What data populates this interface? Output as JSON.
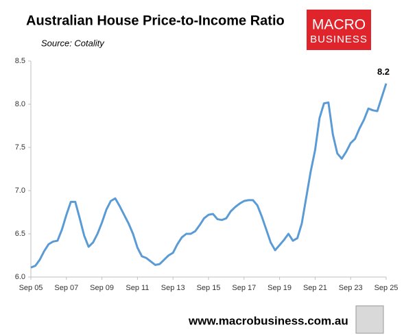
{
  "chart_data": {
    "type": "line",
    "title": "Australian House Price-to-Income Ratio",
    "subtitle": "Source: Cotality",
    "logo": [
      "MACRO",
      "BUSINESS"
    ],
    "footer": "www.macrobusiness.com.au",
    "categories": [
      "Sep 05",
      null,
      null,
      null,
      null,
      null,
      null,
      null,
      "Sep 07",
      null,
      null,
      null,
      null,
      null,
      null,
      null,
      "Sep 09",
      null,
      null,
      null,
      null,
      null,
      null,
      null,
      "Sep 11",
      null,
      null,
      null,
      null,
      null,
      null,
      null,
      "Sep 13",
      null,
      null,
      null,
      null,
      null,
      null,
      null,
      "Sep 15",
      null,
      null,
      null,
      null,
      null,
      null,
      null,
      "Sep 17",
      null,
      null,
      null,
      null,
      null,
      null,
      null,
      "Sep 19",
      null,
      null,
      null,
      null,
      null,
      null,
      null,
      "Sep 21",
      null,
      null,
      null,
      null,
      null,
      null,
      null,
      "Sep 23",
      null,
      null,
      null,
      null,
      null,
      null,
      null,
      "Sep 25"
    ],
    "values": [
      6.11,
      6.13,
      6.2,
      6.3,
      6.38,
      6.41,
      6.42,
      6.55,
      6.72,
      6.87,
      6.87,
      6.68,
      6.48,
      6.35,
      6.4,
      6.5,
      6.63,
      6.78,
      6.88,
      6.91,
      6.82,
      6.72,
      6.62,
      6.5,
      6.34,
      6.24,
      6.22,
      6.18,
      6.14,
      6.15,
      6.2,
      6.25,
      6.28,
      6.38,
      6.46,
      6.5,
      6.5,
      6.53,
      6.6,
      6.68,
      6.72,
      6.73,
      6.67,
      6.66,
      6.68,
      6.76,
      6.81,
      6.85,
      6.88,
      6.89,
      6.89,
      6.83,
      6.7,
      6.55,
      6.4,
      6.31,
      6.37,
      6.43,
      6.5,
      6.42,
      6.45,
      6.62,
      6.92,
      7.22,
      7.47,
      7.84,
      8.01,
      8.02,
      7.65,
      7.43,
      7.37,
      7.45,
      7.55,
      7.6,
      7.72,
      7.82,
      7.95,
      7.93,
      7.92,
      8.08,
      8.24
    ],
    "value_labels": [
      null,
      null,
      null,
      null,
      null,
      null,
      null,
      null,
      null,
      null,
      null,
      null,
      null,
      null,
      null,
      null,
      null,
      null,
      null,
      null,
      null,
      null,
      null,
      null,
      null,
      null,
      null,
      null,
      null,
      null,
      null,
      null,
      null,
      null,
      null,
      null,
      null,
      null,
      null,
      null,
      null,
      null,
      null,
      null,
      null,
      null,
      null,
      null,
      null,
      null,
      null,
      null,
      null,
      null,
      null,
      null,
      null,
      null,
      null,
      null,
      null,
      null,
      null,
      null,
      null,
      null,
      null,
      null,
      null,
      null,
      null,
      null,
      null,
      null,
      null,
      null,
      null,
      null,
      null,
      null,
      "8.2"
    ],
    "color": "#5b9bd5",
    "ylim": [
      6.0,
      8.5
    ],
    "yticks": [
      {
        "value": 6.0,
        "label": "6.0"
      },
      6.5,
      {
        "value": 7.0,
        "label": "7.0"
      },
      7.5,
      {
        "value": 8.0,
        "label": "8.0"
      },
      8.5
    ],
    "grid": false
  }
}
